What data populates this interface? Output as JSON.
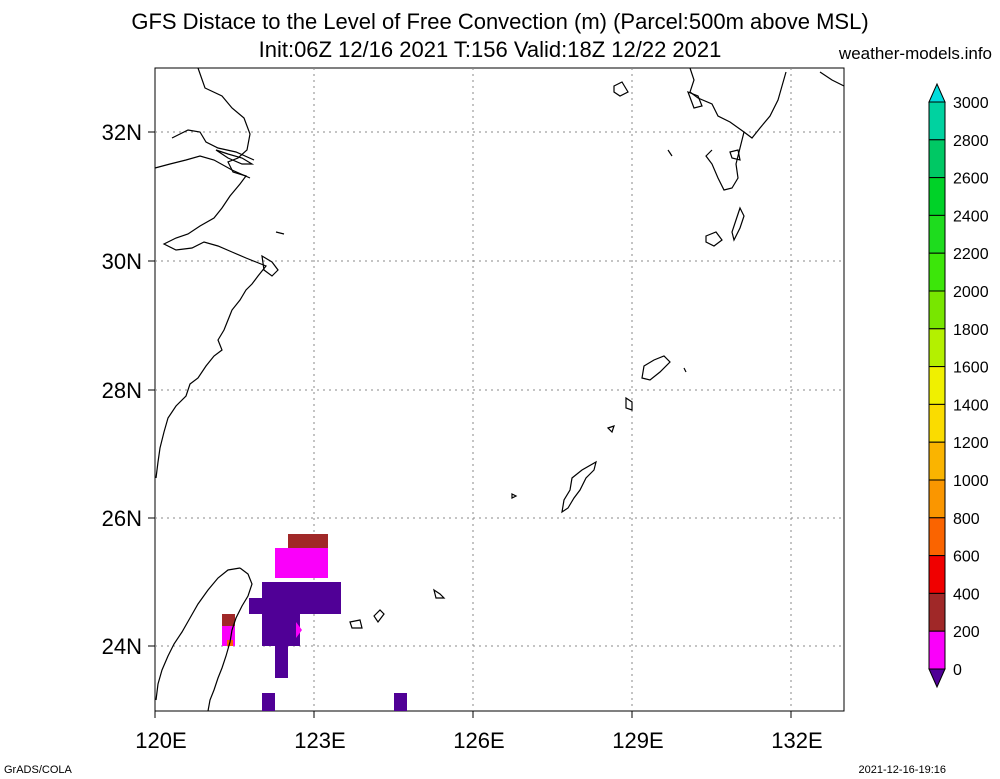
{
  "header": {
    "title_line1": "GFS Distace to the Level of Free Convection (m) (Parcel:500m above MSL)",
    "title_line2": "Init:06Z 12/16 2021 T:156 Valid:18Z 12/22 2021",
    "site": "weather-models.info"
  },
  "map": {
    "lon_labels": [
      "120E",
      "123E",
      "126E",
      "129E",
      "132E"
    ],
    "lat_labels": [
      "32N",
      "30N",
      "28N",
      "26N",
      "24N"
    ]
  },
  "colorbar": {
    "labels": [
      "3000",
      "2800",
      "2600",
      "2400",
      "2200",
      "2000",
      "1800",
      "1600",
      "1400",
      "1200",
      "1000",
      "800",
      "600",
      "400",
      "200",
      "0"
    ],
    "colors": [
      "#00dcdc",
      "#00d2a0",
      "#00c864",
      "#00d228",
      "#1edc1e",
      "#3ce60a",
      "#78e600",
      "#b4f000",
      "#f0f000",
      "#fadc00",
      "#fab400",
      "#fa9600",
      "#fa6400",
      "#f00000",
      "#a02828",
      "#fa00fa",
      "#500096"
    ]
  },
  "footer": {
    "left": "GrADS/COLA",
    "right": "2021-12-16-19:16"
  }
}
